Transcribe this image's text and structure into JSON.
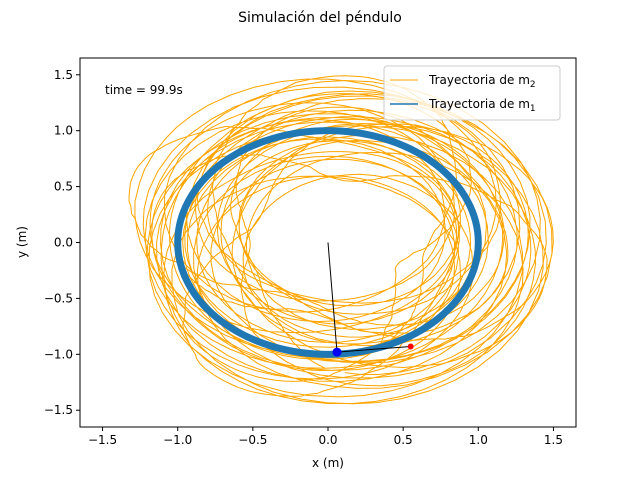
{
  "chart_data": {
    "type": "line",
    "title": "Simulación del péndulo",
    "xlabel": "x (m)",
    "ylabel": "y (m)",
    "xlim": [
      -1.65,
      1.65
    ],
    "ylim": [
      -1.65,
      1.65
    ],
    "xticks": [
      -1.5,
      -1.0,
      -0.5,
      0.0,
      0.5,
      1.0,
      1.5
    ],
    "yticks": [
      -1.5,
      -1.0,
      -0.5,
      0.0,
      0.5,
      1.0,
      1.5
    ],
    "xtick_labels": [
      "−1.5",
      "−1.0",
      "−0.5",
      "0.0",
      "0.5",
      "1.0",
      "1.5"
    ],
    "ytick_labels": [
      "−1.5",
      "−1.0",
      "−0.5",
      "0.0",
      "0.5",
      "1.0",
      "1.5"
    ],
    "grid": false,
    "legend_position": "top-right",
    "annotation": "time = 99.9s",
    "series": [
      {
        "name": "Trayectoria de m2",
        "name_base": "Trayectoria de m",
        "name_sub": "2",
        "color": "#ffa500",
        "description_kind": "chaotic trajectory filling annulus",
        "r_min": 0.5,
        "r_max": 1.5
      },
      {
        "name": "Trayectoria de m1",
        "name_base": "Trayectoria de m",
        "name_sub": "1",
        "color": "#1f77b4",
        "description_kind": "circle of radius 1",
        "radius": 1.0
      }
    ],
    "pendulum": {
      "pivot": [
        0.0,
        0.0
      ],
      "m1": [
        0.06,
        -0.98
      ],
      "m2": [
        0.55,
        -0.93
      ],
      "m1_color": "#0000ff",
      "m2_color": "#ff0000",
      "rod_color": "#000000"
    }
  }
}
